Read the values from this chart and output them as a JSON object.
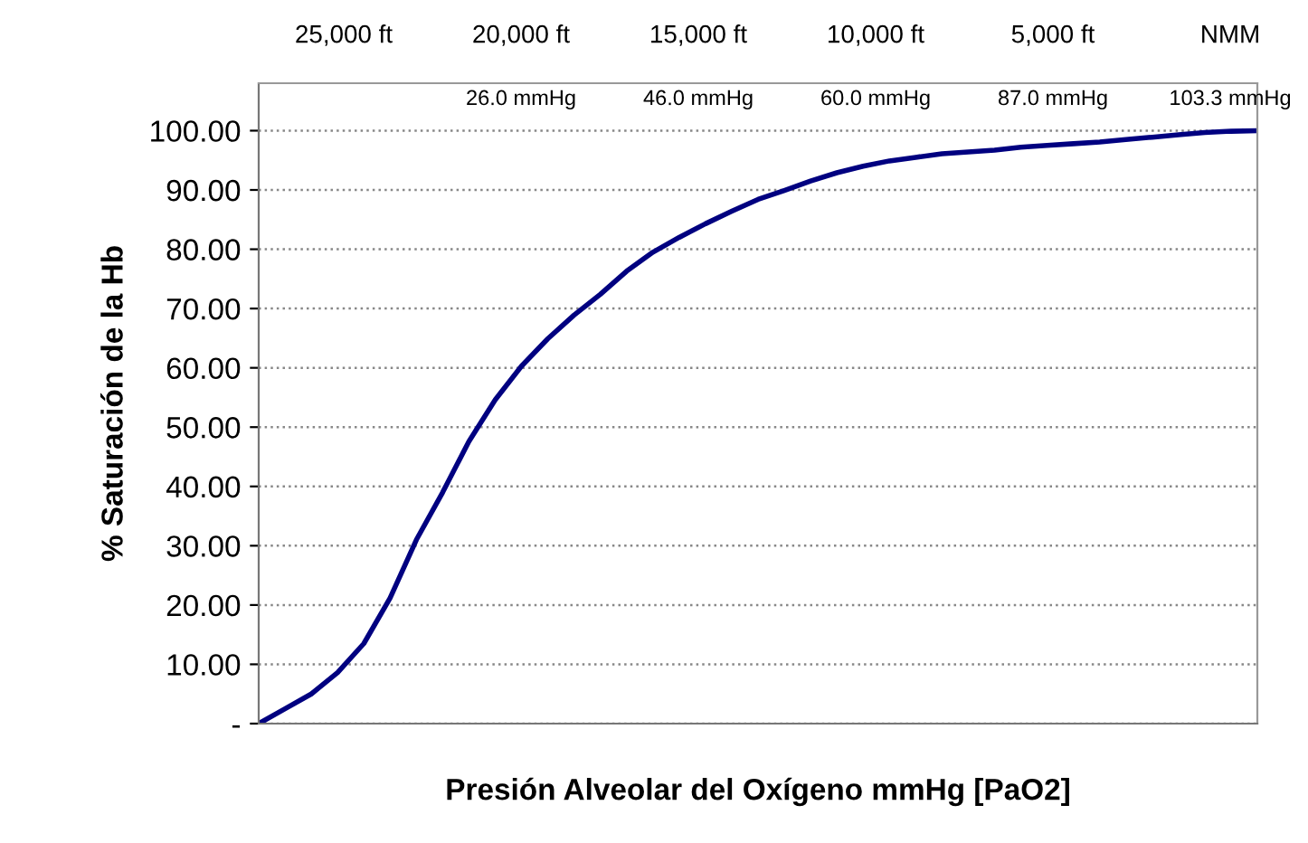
{
  "chart_data": {
    "type": "line",
    "xlabel": "Presión Alveolar del Oxígeno mmHg [PaO2]",
    "ylabel": "% Saturación de la Hb",
    "categories": [
      null,
      null,
      null,
      null,
      null,
      null,
      null,
      null,
      null,
      null,
      null,
      null,
      null,
      null,
      null,
      null,
      null,
      null,
      null,
      null,
      null,
      null,
      null,
      null,
      null,
      null,
      null,
      null,
      null,
      null,
      null,
      null,
      null,
      null,
      null,
      null,
      null,
      null,
      null
    ],
    "series": [
      {
        "color": "#000080",
        "values": [
          0,
          2.5,
          5.0,
          8.6,
          13.5,
          21.2,
          31.0,
          39.0,
          47.6,
          54.6,
          60.3,
          64.9,
          68.9,
          72.4,
          76.3,
          79.5,
          82.0,
          84.3,
          86.4,
          88.4,
          89.9,
          91.5,
          92.9,
          94.0,
          94.9,
          95.5,
          96.1,
          96.4,
          96.7,
          97.2,
          97.5,
          97.8,
          98.1,
          98.5,
          98.9,
          99.3,
          99.7,
          99.9,
          100
        ]
      }
    ],
    "ylim": [
      0,
      108
    ],
    "yticks": [
      {
        "value": 0,
        "label": "-"
      },
      {
        "value": 10,
        "label": "10.00"
      },
      {
        "value": 20,
        "label": "20.00"
      },
      {
        "value": 30,
        "label": "30.00"
      },
      {
        "value": 40,
        "label": "40.00"
      },
      {
        "value": 50,
        "label": "50.00"
      },
      {
        "value": 60,
        "label": "60.00"
      },
      {
        "value": 70,
        "label": "70.00"
      },
      {
        "value": 80,
        "label": "80.00"
      },
      {
        "value": 90,
        "label": "90.00"
      },
      {
        "value": 100,
        "label": "100.00"
      }
    ],
    "grid": "y",
    "marker": "none",
    "line_style": "solid",
    "annotations": [
      "25,000 ft",
      "20,000 ft",
      "15,000 ft",
      "10,000 ft",
      "5,000 ft",
      "NMM",
      "26.0 mmHg",
      "46.0 mmHg",
      "60.0 mmHg",
      "87.0 mmHg",
      "103.3 mmHg"
    ]
  }
}
